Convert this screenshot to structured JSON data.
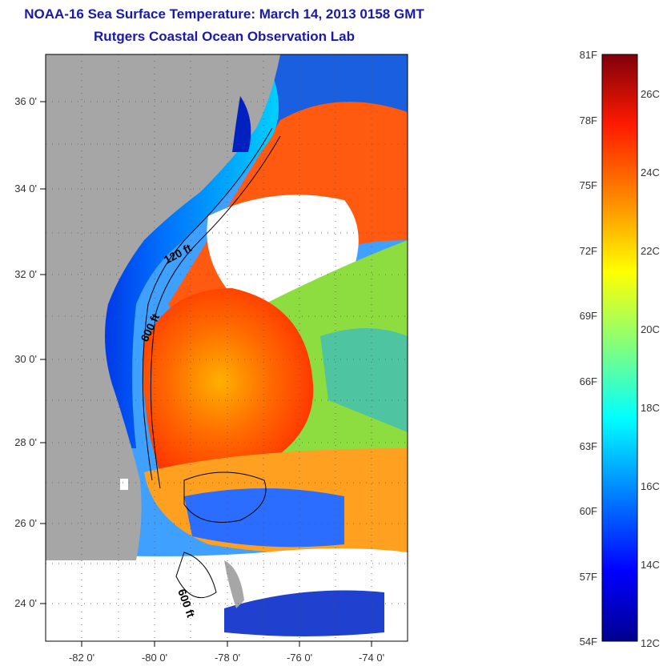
{
  "header": {
    "title": "NOAA-16 Sea Surface Temperature:  March 14, 2013 0158 GMT",
    "subtitle": "Rutgers Coastal Ocean Observation Lab"
  },
  "map": {
    "lon_ticks": [
      "-82 0'",
      "-80 0'",
      "-78 0'",
      "-76 0'",
      "-74 0'"
    ],
    "lat_ticks": [
      "36 0'",
      "34 0'",
      "32 0'",
      "30 0'",
      "28 0'",
      "26 0'",
      "24 0'"
    ],
    "lon_range": [
      -83,
      -73
    ],
    "lat_range": [
      23,
      37
    ],
    "isobaths": [
      "120 ft",
      "600 ft",
      "600 ft"
    ]
  },
  "colorbar": {
    "f_labels": [
      "81F",
      "78F",
      "75F",
      "72F",
      "69F",
      "66F",
      "63F",
      "60F",
      "57F",
      "54F"
    ],
    "c_labels": [
      "26C",
      "24C",
      "22C",
      "20C",
      "18C",
      "16C",
      "14C",
      "12C"
    ],
    "colors": [
      "#80000a",
      "#ff1a00",
      "#ff8c00",
      "#ffff00",
      "#7fff7f",
      "#00ffff",
      "#0080ff",
      "#0000ff",
      "#00008f"
    ]
  }
}
